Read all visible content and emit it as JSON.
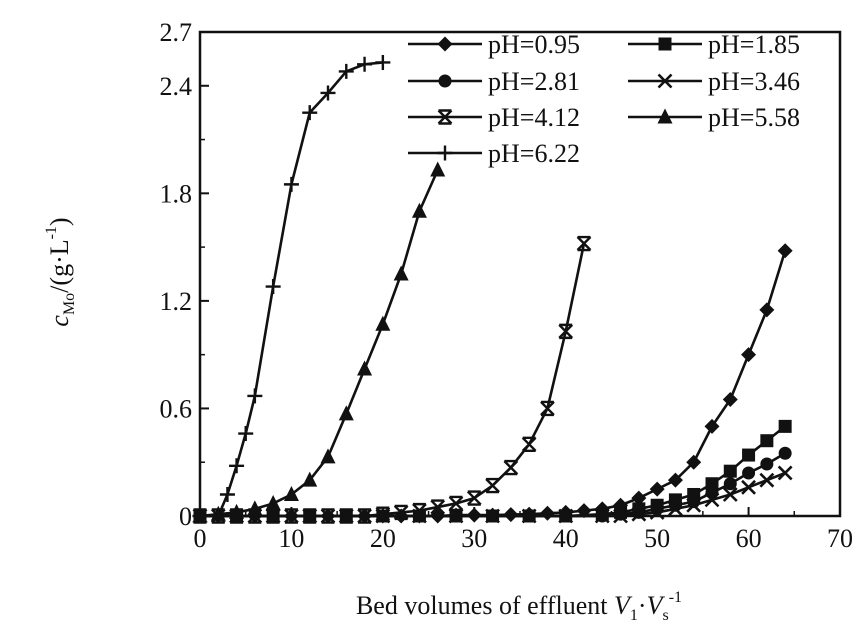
{
  "chart_data": {
    "type": "line",
    "xlabel": "Bed volumes of effluent V1·Vs-1",
    "xlabel_parts": {
      "prefix": "Bed volumes of effluent ",
      "v": "V",
      "sub1": "1",
      "dot": "·",
      "v2": "V",
      "sub2": "s",
      "sup": "-1"
    },
    "ylabel": "cMo/(g·L-1)",
    "ylabel_parts": {
      "c": "c",
      "sub": "Mo",
      "unit": "/(g·L",
      "sup": "-1",
      "close": ")"
    },
    "xlim": [
      0,
      70
    ],
    "ylim": [
      0,
      2.7
    ],
    "xticks": [
      "0",
      "10",
      "20",
      "30",
      "40",
      "50",
      "60",
      "70"
    ],
    "yticks": [
      "0",
      "0.6",
      "1.2",
      "1.8",
      "2.4",
      "2.7"
    ],
    "ytick_values": [
      0,
      0.6,
      1.2,
      1.8,
      2.4,
      2.7
    ],
    "grid": false,
    "legend_position": "top-right",
    "series": [
      {
        "name": "pH=0.95",
        "marker": "diamond",
        "points": [
          [
            0,
            0
          ],
          [
            2,
            0
          ],
          [
            4,
            0
          ],
          [
            6,
            0
          ],
          [
            8,
            0
          ],
          [
            10,
            0
          ],
          [
            12,
            0
          ],
          [
            14,
            0
          ],
          [
            16,
            0
          ],
          [
            18,
            0
          ],
          [
            20,
            0
          ],
          [
            22,
            0
          ],
          [
            24,
            0
          ],
          [
            26,
            0
          ],
          [
            28,
            0.005
          ],
          [
            30,
            0.005
          ],
          [
            32,
            0.005
          ],
          [
            34,
            0.008
          ],
          [
            36,
            0.01
          ],
          [
            38,
            0.015
          ],
          [
            40,
            0.02
          ],
          [
            42,
            0.03
          ],
          [
            44,
            0.04
          ],
          [
            46,
            0.06
          ],
          [
            48,
            0.1
          ],
          [
            50,
            0.15
          ],
          [
            52,
            0.2
          ],
          [
            54,
            0.3
          ],
          [
            56,
            0.5
          ],
          [
            58,
            0.65
          ],
          [
            60,
            0.9
          ],
          [
            62,
            1.15
          ],
          [
            64,
            1.48
          ]
        ]
      },
      {
        "name": "pH=1.85",
        "marker": "square",
        "points": [
          [
            0,
            0
          ],
          [
            4,
            0
          ],
          [
            8,
            0
          ],
          [
            12,
            0
          ],
          [
            16,
            0
          ],
          [
            20,
            0
          ],
          [
            24,
            0
          ],
          [
            28,
            0
          ],
          [
            32,
            0
          ],
          [
            36,
            0
          ],
          [
            40,
            0
          ],
          [
            44,
            0.01
          ],
          [
            46,
            0.02
          ],
          [
            48,
            0.04
          ],
          [
            50,
            0.06
          ],
          [
            52,
            0.09
          ],
          [
            54,
            0.12
          ],
          [
            56,
            0.18
          ],
          [
            58,
            0.25
          ],
          [
            60,
            0.34
          ],
          [
            62,
            0.42
          ],
          [
            64,
            0.5
          ]
        ]
      },
      {
        "name": "pH=2.81",
        "marker": "circle",
        "points": [
          [
            0,
            0
          ],
          [
            4,
            0
          ],
          [
            8,
            0
          ],
          [
            12,
            0
          ],
          [
            16,
            0
          ],
          [
            20,
            0
          ],
          [
            24,
            0
          ],
          [
            28,
            0
          ],
          [
            32,
            0
          ],
          [
            36,
            0
          ],
          [
            40,
            0
          ],
          [
            44,
            0
          ],
          [
            46,
            0.01
          ],
          [
            48,
            0.02
          ],
          [
            50,
            0.04
          ],
          [
            52,
            0.06
          ],
          [
            54,
            0.08
          ],
          [
            56,
            0.13
          ],
          [
            58,
            0.18
          ],
          [
            60,
            0.24
          ],
          [
            62,
            0.29
          ],
          [
            64,
            0.35
          ]
        ]
      },
      {
        "name": "pH=3.46",
        "marker": "x",
        "points": [
          [
            0,
            0
          ],
          [
            4,
            0
          ],
          [
            8,
            0
          ],
          [
            12,
            0
          ],
          [
            16,
            0
          ],
          [
            20,
            0
          ],
          [
            24,
            0
          ],
          [
            28,
            0
          ],
          [
            32,
            0
          ],
          [
            36,
            0
          ],
          [
            40,
            0
          ],
          [
            44,
            0
          ],
          [
            46,
            0
          ],
          [
            48,
            0.01
          ],
          [
            50,
            0.02
          ],
          [
            52,
            0.04
          ],
          [
            54,
            0.06
          ],
          [
            56,
            0.09
          ],
          [
            58,
            0.12
          ],
          [
            60,
            0.16
          ],
          [
            62,
            0.2
          ],
          [
            64,
            0.24
          ]
        ]
      },
      {
        "name": "pH=4.12",
        "marker": "xbox",
        "points": [
          [
            0,
            0
          ],
          [
            2,
            0
          ],
          [
            4,
            0
          ],
          [
            6,
            0
          ],
          [
            8,
            0
          ],
          [
            10,
            0
          ],
          [
            12,
            0
          ],
          [
            14,
            0
          ],
          [
            16,
            0
          ],
          [
            18,
            0
          ],
          [
            20,
            0.01
          ],
          [
            22,
            0.02
          ],
          [
            24,
            0.03
          ],
          [
            26,
            0.05
          ],
          [
            28,
            0.07
          ],
          [
            30,
            0.1
          ],
          [
            32,
            0.17
          ],
          [
            34,
            0.27
          ],
          [
            36,
            0.4
          ],
          [
            38,
            0.6
          ],
          [
            40,
            1.03
          ],
          [
            42,
            1.52
          ]
        ]
      },
      {
        "name": "pH=5.58",
        "marker": "triangle",
        "points": [
          [
            0,
            0
          ],
          [
            2,
            0.01
          ],
          [
            4,
            0.02
          ],
          [
            6,
            0.04
          ],
          [
            8,
            0.07
          ],
          [
            10,
            0.12
          ],
          [
            12,
            0.2
          ],
          [
            14,
            0.33
          ],
          [
            16,
            0.57
          ],
          [
            18,
            0.82
          ],
          [
            20,
            1.07
          ],
          [
            22,
            1.35
          ],
          [
            24,
            1.7
          ],
          [
            26,
            1.93
          ]
        ]
      },
      {
        "name": "pH=6.22",
        "marker": "plus",
        "points": [
          [
            0,
            0
          ],
          [
            2,
            0
          ],
          [
            3,
            0.12
          ],
          [
            4,
            0.28
          ],
          [
            5,
            0.46
          ],
          [
            6,
            0.67
          ],
          [
            8,
            1.28
          ],
          [
            10,
            1.85
          ],
          [
            12,
            2.25
          ],
          [
            14,
            2.36
          ],
          [
            16,
            2.48
          ],
          [
            18,
            2.52
          ],
          [
            20,
            2.53
          ]
        ]
      }
    ]
  }
}
